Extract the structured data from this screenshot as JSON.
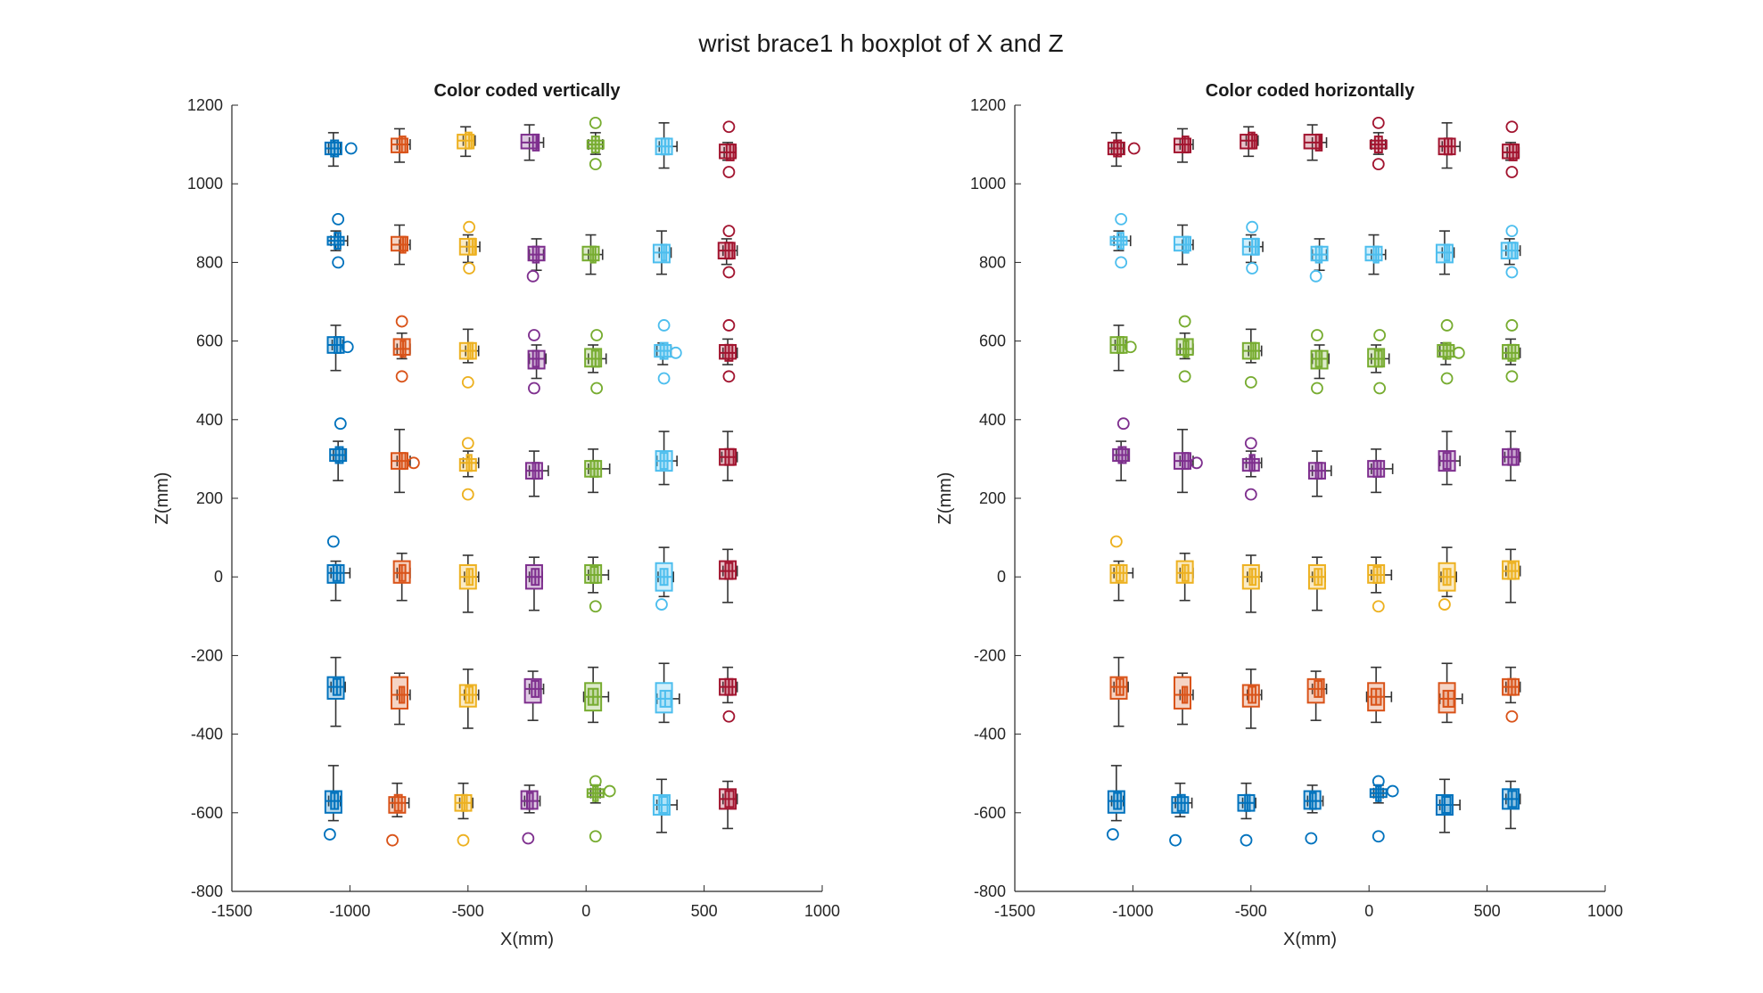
{
  "figure": {
    "title": "wrist brace1 h boxplot of X and Z"
  },
  "palette": [
    "#0072BD",
    "#D95319",
    "#EDB120",
    "#7E2F8E",
    "#77AC30",
    "#4DBEEE",
    "#A2142F"
  ],
  "chart_data": [
    {
      "type": "box",
      "title": "Color coded vertically",
      "xlabel": "X(mm)",
      "ylabel": "Z(mm)",
      "xlim": [
        -1500,
        1000
      ],
      "ylim": [
        -800,
        1200
      ],
      "xticks": [
        "-1500",
        "-1000",
        "-500",
        "0",
        "500",
        "1000"
      ],
      "yticks": [
        "-800",
        "-600",
        "-400",
        "-200",
        "0",
        "200",
        "400",
        "600",
        "800",
        "1000",
        "1200"
      ],
      "grid": false,
      "color_coding": "by column"
    },
    {
      "type": "box",
      "title": "Color coded horizontally",
      "xlabel": "X(mm)",
      "ylabel": "Z(mm)",
      "xlim": [
        -1500,
        1000
      ],
      "ylim": [
        -800,
        1200
      ],
      "xticks": [
        "-1500",
        "-1000",
        "-500",
        "0",
        "500",
        "1000"
      ],
      "yticks": [
        "-800",
        "-600",
        "-400",
        "-200",
        "0",
        "200",
        "400",
        "600",
        "800",
        "1000",
        "1200"
      ],
      "grid": false,
      "color_coding": "by row"
    }
  ],
  "grid_points": [
    {
      "row": 0,
      "col": 0,
      "x": -1070,
      "z_min": 1045,
      "z_q1": 1075,
      "z_med": 1090,
      "z_q3": 1105,
      "z_max": 1130,
      "x_min": -1090,
      "x_q1": -1080,
      "x_med": -1065,
      "x_q3": -1050,
      "x_max": -1040,
      "outliers": [
        [
          -995,
          1090
        ]
      ]
    },
    {
      "row": 0,
      "col": 1,
      "x": -790,
      "z_min": 1055,
      "z_q1": 1080,
      "z_med": 1100,
      "z_q3": 1115,
      "z_max": 1140,
      "x_min": -800,
      "x_q1": -790,
      "x_med": -780,
      "x_q3": -765,
      "x_max": -745,
      "outliers": []
    },
    {
      "row": 0,
      "col": 2,
      "x": -510,
      "z_min": 1070,
      "z_q1": 1090,
      "z_med": 1110,
      "z_q3": 1125,
      "z_max": 1145,
      "x_min": -520,
      "x_q1": -510,
      "x_med": -495,
      "x_q3": -485,
      "x_max": -470,
      "outliers": []
    },
    {
      "row": 0,
      "col": 3,
      "x": -240,
      "z_min": 1060,
      "z_q1": 1090,
      "z_med": 1105,
      "z_q3": 1125,
      "z_max": 1150,
      "x_min": -240,
      "x_q1": -225,
      "x_med": -210,
      "x_q3": -200,
      "x_max": -180,
      "outliers": []
    },
    {
      "row": 0,
      "col": 4,
      "x": 40,
      "z_min": 1075,
      "z_q1": 1090,
      "z_med": 1100,
      "z_q3": 1110,
      "z_max": 1130,
      "x_min": 10,
      "x_q1": 25,
      "x_med": 40,
      "x_q3": 55,
      "x_max": 70,
      "outliers": [
        [
          40,
          1155
        ],
        [
          40,
          1050
        ]
      ]
    },
    {
      "row": 0,
      "col": 5,
      "x": 330,
      "z_min": 1040,
      "z_q1": 1075,
      "z_med": 1095,
      "z_q3": 1115,
      "z_max": 1155,
      "x_min": 310,
      "x_q1": 320,
      "x_med": 335,
      "x_q3": 350,
      "x_max": 385,
      "outliers": []
    },
    {
      "row": 0,
      "col": 6,
      "x": 600,
      "z_min": 1060,
      "z_q1": 1065,
      "z_med": 1080,
      "z_q3": 1100,
      "z_max": 1105,
      "x_min": 585,
      "x_q1": 595,
      "x_med": 610,
      "x_q3": 625,
      "x_max": 635,
      "outliers": [
        [
          605,
          1145
        ],
        [
          605,
          1030
        ]
      ]
    },
    {
      "row": 1,
      "col": 0,
      "x": -1060,
      "z_min": 830,
      "z_q1": 845,
      "z_med": 855,
      "z_q3": 865,
      "z_max": 880,
      "x_min": -1080,
      "x_q1": -1065,
      "x_med": -1050,
      "x_q3": -1040,
      "x_max": -1010,
      "outliers": [
        [
          -1050,
          910
        ],
        [
          -1050,
          800
        ]
      ]
    },
    {
      "row": 1,
      "col": 1,
      "x": -790,
      "z_min": 795,
      "z_q1": 830,
      "z_med": 845,
      "z_q3": 865,
      "z_max": 895,
      "x_min": -790,
      "x_q1": -785,
      "x_med": -775,
      "x_q3": -765,
      "x_max": -745,
      "outliers": []
    },
    {
      "row": 1,
      "col": 2,
      "x": -500,
      "z_min": 800,
      "z_q1": 820,
      "z_med": 840,
      "z_q3": 860,
      "z_max": 870,
      "x_min": -505,
      "x_q1": -495,
      "x_med": -480,
      "x_q3": -470,
      "x_max": -450,
      "outliers": [
        [
          -495,
          890
        ],
        [
          -495,
          785
        ]
      ]
    },
    {
      "row": 1,
      "col": 3,
      "x": -210,
      "z_min": 780,
      "z_q1": 805,
      "z_med": 820,
      "z_q3": 840,
      "z_max": 860,
      "x_min": -240,
      "x_q1": -225,
      "x_med": -210,
      "x_q3": -200,
      "x_max": -180,
      "outliers": [
        [
          -225,
          765
        ]
      ]
    },
    {
      "row": 1,
      "col": 4,
      "x": 20,
      "z_min": 770,
      "z_q1": 805,
      "z_med": 820,
      "z_q3": 840,
      "z_max": 870,
      "x_min": 10,
      "x_q1": 20,
      "x_med": 30,
      "x_q3": 40,
      "x_max": 70,
      "outliers": []
    },
    {
      "row": 1,
      "col": 5,
      "x": 320,
      "z_min": 770,
      "z_q1": 800,
      "z_med": 825,
      "z_q3": 845,
      "z_max": 880,
      "x_min": 310,
      "x_q1": 320,
      "x_med": 330,
      "x_q3": 340,
      "x_max": 360,
      "outliers": []
    },
    {
      "row": 1,
      "col": 6,
      "x": 595,
      "z_min": 795,
      "z_q1": 810,
      "z_med": 830,
      "z_q3": 850,
      "z_max": 860,
      "x_min": 580,
      "x_q1": 590,
      "x_med": 605,
      "x_q3": 620,
      "x_max": 640,
      "outliers": [
        [
          605,
          880
        ],
        [
          605,
          775
        ]
      ]
    },
    {
      "row": 2,
      "col": 0,
      "x": -1060,
      "z_min": 525,
      "z_q1": 570,
      "z_med": 590,
      "z_q3": 610,
      "z_max": 640,
      "x_min": -1075,
      "x_q1": -1065,
      "x_med": -1055,
      "x_q3": -1040,
      "x_max": -1030,
      "outliers": [
        [
          -1010,
          585
        ]
      ]
    },
    {
      "row": 2,
      "col": 1,
      "x": -780,
      "z_min": 555,
      "z_q1": 565,
      "z_med": 580,
      "z_q3": 605,
      "z_max": 620,
      "x_min": -800,
      "x_q1": -785,
      "x_med": -775,
      "x_q3": -765,
      "x_max": -745,
      "outliers": [
        [
          -780,
          650
        ],
        [
          -780,
          510
        ]
      ]
    },
    {
      "row": 2,
      "col": 2,
      "x": -500,
      "z_min": 545,
      "z_q1": 555,
      "z_med": 575,
      "z_q3": 595,
      "z_max": 630,
      "x_min": -510,
      "x_q1": -500,
      "x_med": -490,
      "x_q3": -480,
      "x_max": -455,
      "outliers": [
        [
          -500,
          495
        ]
      ]
    },
    {
      "row": 2,
      "col": 3,
      "x": -210,
      "z_min": 505,
      "z_q1": 530,
      "z_med": 555,
      "z_q3": 575,
      "z_max": 590,
      "x_min": -240,
      "x_q1": -225,
      "x_med": -210,
      "x_q3": -200,
      "x_max": -170,
      "outliers": [
        [
          -220,
          615
        ],
        [
          -220,
          480
        ]
      ]
    },
    {
      "row": 2,
      "col": 4,
      "x": 30,
      "z_min": 520,
      "z_q1": 535,
      "z_med": 555,
      "z_q3": 580,
      "z_max": 590,
      "x_min": 10,
      "x_q1": 25,
      "x_med": 40,
      "x_q3": 55,
      "x_max": 85,
      "outliers": [
        [
          45,
          615
        ],
        [
          45,
          480
        ]
      ]
    },
    {
      "row": 2,
      "col": 5,
      "x": 325,
      "z_min": 540,
      "z_q1": 560,
      "z_med": 575,
      "z_q3": 590,
      "z_max": 595,
      "x_min": 300,
      "x_q1": 315,
      "x_med": 330,
      "x_q3": 345,
      "x_max": 360,
      "outliers": [
        [
          330,
          640
        ],
        [
          330,
          505
        ],
        [
          380,
          570
        ]
      ]
    },
    {
      "row": 2,
      "col": 6,
      "x": 600,
      "z_min": 540,
      "z_q1": 555,
      "z_med": 570,
      "z_q3": 590,
      "z_max": 605,
      "x_min": 580,
      "x_q1": 590,
      "x_med": 605,
      "x_q3": 620,
      "x_max": 640,
      "outliers": [
        [
          605,
          640
        ],
        [
          605,
          510
        ]
      ]
    },
    {
      "row": 3,
      "col": 0,
      "x": -1050,
      "z_min": 245,
      "z_q1": 295,
      "z_med": 310,
      "z_q3": 325,
      "z_max": 345,
      "x_min": -1070,
      "x_q1": -1060,
      "x_med": -1045,
      "x_q3": -1030,
      "x_max": -1020,
      "outliers": [
        [
          -1040,
          390
        ]
      ]
    },
    {
      "row": 3,
      "col": 1,
      "x": -790,
      "z_min": 215,
      "z_q1": 275,
      "z_med": 295,
      "z_q3": 315,
      "z_max": 375,
      "x_min": -800,
      "x_q1": -790,
      "x_med": -780,
      "x_q3": -765,
      "x_max": -745,
      "outliers": [
        [
          -730,
          290
        ]
      ]
    },
    {
      "row": 3,
      "col": 2,
      "x": -500,
      "z_min": 255,
      "z_q1": 270,
      "z_med": 290,
      "z_q3": 300,
      "z_max": 320,
      "x_min": -520,
      "x_q1": -505,
      "x_med": -495,
      "x_q3": -485,
      "x_max": -455,
      "outliers": [
        [
          -500,
          340
        ],
        [
          -500,
          210
        ]
      ]
    },
    {
      "row": 3,
      "col": 3,
      "x": -220,
      "z_min": 205,
      "z_q1": 250,
      "z_med": 270,
      "z_q3": 290,
      "z_max": 320,
      "x_min": -240,
      "x_q1": -225,
      "x_med": -215,
      "x_q3": -200,
      "x_max": -160,
      "outliers": []
    },
    {
      "row": 3,
      "col": 4,
      "x": 30,
      "z_min": 215,
      "z_q1": 255,
      "z_med": 275,
      "z_q3": 295,
      "z_max": 325,
      "x_min": 10,
      "x_q1": 20,
      "x_med": 35,
      "x_q3": 50,
      "x_max": 100,
      "outliers": []
    },
    {
      "row": 3,
      "col": 5,
      "x": 330,
      "z_min": 235,
      "z_q1": 270,
      "z_med": 295,
      "z_q3": 320,
      "z_max": 370,
      "x_min": 300,
      "x_q1": 315,
      "x_med": 330,
      "x_q3": 345,
      "x_max": 385,
      "outliers": []
    },
    {
      "row": 3,
      "col": 6,
      "x": 600,
      "z_min": 245,
      "z_q1": 285,
      "z_med": 305,
      "z_q3": 325,
      "z_max": 370,
      "x_min": 575,
      "x_q1": 590,
      "x_med": 605,
      "x_q3": 625,
      "x_max": 640,
      "outliers": []
    },
    {
      "row": 4,
      "col": 0,
      "x": -1060,
      "z_min": -60,
      "z_q1": -15,
      "z_med": 10,
      "z_q3": 30,
      "z_max": 40,
      "x_min": -1080,
      "x_q1": -1070,
      "x_med": -1055,
      "x_q3": -1040,
      "x_max": -1000,
      "outliers": [
        [
          -1070,
          90
        ]
      ]
    },
    {
      "row": 4,
      "col": 1,
      "x": -780,
      "z_min": -60,
      "z_q1": -15,
      "z_med": 10,
      "z_q3": 40,
      "z_max": 60,
      "x_min": -800,
      "x_q1": -790,
      "x_med": -780,
      "x_q3": -765,
      "x_max": -745,
      "outliers": []
    },
    {
      "row": 4,
      "col": 2,
      "x": -500,
      "z_min": -90,
      "z_q1": -30,
      "z_med": 0,
      "z_q3": 30,
      "z_max": 55,
      "x_min": -515,
      "x_q1": -505,
      "x_med": -495,
      "x_q3": -480,
      "x_max": -455,
      "outliers": []
    },
    {
      "row": 4,
      "col": 3,
      "x": -220,
      "z_min": -85,
      "z_q1": -30,
      "z_med": 0,
      "z_q3": 30,
      "z_max": 50,
      "x_min": -240,
      "x_q1": -230,
      "x_med": -215,
      "x_q3": -200,
      "x_max": -185,
      "outliers": []
    },
    {
      "row": 4,
      "col": 4,
      "x": 30,
      "z_min": -40,
      "z_q1": -15,
      "z_med": 5,
      "z_q3": 30,
      "z_max": 50,
      "x_min": 10,
      "x_q1": 20,
      "x_med": 35,
      "x_q3": 50,
      "x_max": 95,
      "outliers": [
        [
          40,
          -75
        ]
      ]
    },
    {
      "row": 4,
      "col": 5,
      "x": 330,
      "z_min": -50,
      "z_q1": -35,
      "z_med": 0,
      "z_q3": 35,
      "z_max": 75,
      "x_min": 305,
      "x_q1": 315,
      "x_med": 330,
      "x_q3": 345,
      "x_max": 370,
      "outliers": [
        [
          320,
          -70
        ]
      ]
    },
    {
      "row": 4,
      "col": 6,
      "x": 600,
      "z_min": -65,
      "z_q1": -5,
      "z_med": 15,
      "z_q3": 40,
      "z_max": 70,
      "x_min": 580,
      "x_q1": 590,
      "x_med": 605,
      "x_q3": 620,
      "x_max": 640,
      "outliers": []
    },
    {
      "row": 5,
      "col": 0,
      "x": -1060,
      "z_min": -380,
      "z_q1": -310,
      "z_med": -280,
      "z_q3": -255,
      "z_max": -205,
      "x_min": -1080,
      "x_q1": -1070,
      "x_med": -1055,
      "x_q3": -1040,
      "x_max": -1020,
      "outliers": []
    },
    {
      "row": 5,
      "col": 1,
      "x": -790,
      "z_min": -375,
      "z_q1": -335,
      "z_med": -300,
      "z_q3": -255,
      "z_max": -245,
      "x_min": -800,
      "x_q1": -790,
      "x_med": -780,
      "x_q3": -770,
      "x_max": -745,
      "outliers": []
    },
    {
      "row": 5,
      "col": 2,
      "x": -500,
      "z_min": -385,
      "z_q1": -330,
      "z_med": -300,
      "z_q3": -275,
      "z_max": -235,
      "x_min": -515,
      "x_q1": -510,
      "x_med": -495,
      "x_q3": -480,
      "x_max": -455,
      "outliers": []
    },
    {
      "row": 5,
      "col": 3,
      "x": -225,
      "z_min": -365,
      "z_q1": -320,
      "z_med": -285,
      "z_q3": -260,
      "z_max": -240,
      "x_min": -240,
      "x_q1": -230,
      "x_med": -215,
      "x_q3": -200,
      "x_max": -180,
      "outliers": []
    },
    {
      "row": 5,
      "col": 4,
      "x": 30,
      "z_min": -370,
      "z_q1": -340,
      "z_med": -305,
      "z_q3": -270,
      "z_max": -230,
      "x_min": -10,
      "x_q1": 10,
      "x_med": 30,
      "x_q3": 50,
      "x_max": 95,
      "outliers": []
    },
    {
      "row": 5,
      "col": 5,
      "x": 330,
      "z_min": -370,
      "z_q1": -345,
      "z_med": -310,
      "z_q3": -270,
      "z_max": -220,
      "x_min": 300,
      "x_q1": 315,
      "x_med": 335,
      "x_q3": 360,
      "x_max": 395,
      "outliers": []
    },
    {
      "row": 5,
      "col": 6,
      "x": 600,
      "z_min": -320,
      "z_q1": -300,
      "z_med": -280,
      "z_q3": -260,
      "z_max": -230,
      "x_min": 580,
      "x_q1": 590,
      "x_med": 605,
      "x_q3": 620,
      "x_max": 640,
      "outliers": [
        [
          605,
          -355
        ]
      ]
    },
    {
      "row": 6,
      "col": 0,
      "x": -1070,
      "z_min": -620,
      "z_q1": -600,
      "z_med": -570,
      "z_q3": -545,
      "z_max": -480,
      "x_min": -1090,
      "x_q1": -1080,
      "x_med": -1065,
      "x_q3": -1050,
      "x_max": -1040,
      "outliers": [
        [
          -1085,
          -655
        ]
      ]
    },
    {
      "row": 6,
      "col": 1,
      "x": -800,
      "z_min": -610,
      "z_q1": -600,
      "z_med": -575,
      "z_q3": -560,
      "z_max": -525,
      "x_min": -820,
      "x_q1": -810,
      "x_med": -795,
      "x_q3": -780,
      "x_max": -750,
      "outliers": [
        [
          -820,
          -670
        ]
      ]
    },
    {
      "row": 6,
      "col": 2,
      "x": -520,
      "z_min": -615,
      "z_q1": -595,
      "z_med": -575,
      "z_q3": -555,
      "z_max": -525,
      "x_min": -535,
      "x_q1": -525,
      "x_med": -515,
      "x_q3": -505,
      "x_max": -480,
      "outliers": [
        [
          -520,
          -670
        ]
      ]
    },
    {
      "row": 6,
      "col": 3,
      "x": -240,
      "z_min": -600,
      "z_q1": -590,
      "z_med": -570,
      "z_q3": -545,
      "z_max": -530,
      "x_min": -260,
      "x_q1": -250,
      "x_med": -240,
      "x_q3": -225,
      "x_max": -195,
      "outliers": [
        [
          -245,
          -665
        ]
      ]
    },
    {
      "row": 6,
      "col": 4,
      "x": 40,
      "z_min": -575,
      "z_q1": -560,
      "z_med": -550,
      "z_q3": -540,
      "z_max": -530,
      "x_min": 20,
      "x_q1": 30,
      "x_med": 40,
      "x_q3": 50,
      "x_max": 60,
      "outliers": [
        [
          40,
          -520
        ],
        [
          100,
          -545
        ],
        [
          40,
          -660
        ]
      ]
    },
    {
      "row": 6,
      "col": 5,
      "x": 320,
      "z_min": -650,
      "z_q1": -605,
      "z_med": -580,
      "z_q3": -555,
      "z_max": -515,
      "x_min": 300,
      "x_q1": 310,
      "x_med": 320,
      "x_q3": 345,
      "x_max": 385,
      "outliers": []
    },
    {
      "row": 6,
      "col": 6,
      "x": 600,
      "z_min": -640,
      "z_q1": -590,
      "z_med": -565,
      "z_q3": -540,
      "z_max": -520,
      "x_min": 580,
      "x_q1": 590,
      "x_med": 605,
      "x_q3": 625,
      "x_max": 640,
      "outliers": []
    }
  ]
}
